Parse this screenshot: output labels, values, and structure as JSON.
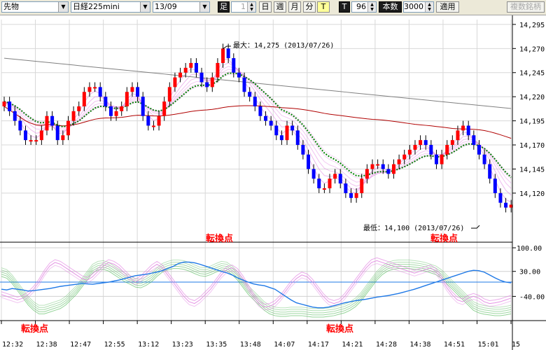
{
  "toolbar": {
    "market": "先物",
    "symbol": "日経225mini",
    "contract": "13/09",
    "period_label": "足",
    "minutes_value": "1",
    "day": "日",
    "week": "週",
    "month": "月",
    "minute": "分",
    "tick": "T",
    "t_label": "T",
    "count1": "96",
    "count_label": "本数",
    "count2": "3000",
    "apply": "適用",
    "compare": "複数銘柄"
  },
  "annotations": {
    "max_label": "最大：14,275 (2013/07/26)",
    "min_label": "最低：14,100 (2013/07/26)",
    "turn": "転換点"
  },
  "colors": {
    "up": "#ff0000",
    "down": "#0000ff",
    "ma_dotted": "#008000",
    "ma_red": "#b00000",
    "ma_gray": "#808080",
    "ribbon": "#e080e0",
    "osc_blue": "#1e78e6"
  },
  "chart_data": {
    "type": "candlestick",
    "x_ticks": [
      "12:32",
      "12:38",
      "12:47",
      "12:55",
      "13:12",
      "13:23",
      "13:35",
      "13:48",
      "14:07",
      "14:17",
      "14:21",
      "14:28",
      "14:38",
      "14:51",
      "15:01",
      "15"
    ],
    "y_ticks": [
      14295,
      14270,
      14245,
      14220,
      14195,
      14170,
      14145,
      14120
    ],
    "ylim": [
      14072,
      14300
    ],
    "max": {
      "value": 14275,
      "date": "2013/07/26",
      "time": "13:35"
    },
    "min": {
      "value": 14100,
      "date": "2013/07/26",
      "time": "15:01"
    },
    "close": [
      14215,
      14205,
      14195,
      14185,
      14175,
      14175,
      14175,
      14185,
      14200,
      14190,
      14175,
      14180,
      14195,
      14205,
      14210,
      14225,
      14230,
      14230,
      14220,
      14210,
      14200,
      14205,
      14210,
      14225,
      14230,
      14220,
      14200,
      14190,
      14190,
      14200,
      14215,
      14230,
      14240,
      14245,
      14250,
      14255,
      14245,
      14235,
      14230,
      14240,
      14255,
      14270,
      14260,
      14245,
      14240,
      14225,
      14220,
      14210,
      14200,
      14195,
      14190,
      14180,
      14175,
      14190,
      14185,
      14170,
      14160,
      14145,
      14135,
      14125,
      14125,
      14135,
      14140,
      14130,
      14120,
      14115,
      14120,
      14135,
      14145,
      14150,
      14150,
      14145,
      14140,
      14150,
      14155,
      14160,
      14165,
      14170,
      14175,
      14170,
      14160,
      14150,
      14160,
      14170,
      14175,
      14185,
      14190,
      14180,
      14170,
      14160,
      14150,
      14135,
      14120,
      14110,
      14105,
      14108
    ],
    "oscillator": {
      "levels": [
        100,
        30,
        -40
      ],
      "blue": [
        -20,
        -22,
        -18,
        -20,
        -22,
        -25,
        -24,
        -22,
        -20,
        -18,
        -15,
        -12,
        -10,
        -8,
        -6,
        -4,
        -5,
        -6,
        -4,
        -2,
        0,
        3,
        6,
        10,
        14,
        18,
        20,
        22,
        25,
        28,
        32,
        38,
        44,
        52,
        56,
        56,
        54,
        50,
        45,
        40,
        35,
        30,
        26,
        20,
        12,
        6,
        0,
        -5,
        -8,
        -10,
        -15,
        -20,
        -30,
        -40,
        -50,
        -58,
        -62,
        -66,
        -70,
        -72,
        -72,
        -70,
        -66,
        -62,
        -58,
        -55,
        -52,
        -50,
        -48,
        -45,
        -42,
        -40,
        -38,
        -35,
        -32,
        -28,
        -24,
        -20,
        -15,
        -10,
        -5,
        0,
        5,
        10,
        15,
        20,
        25,
        30,
        33,
        32,
        28,
        20,
        12,
        5,
        0,
        -2
      ],
      "green": [
        40,
        35,
        20,
        0,
        -20,
        -40,
        -55,
        -65,
        -65,
        -60,
        -55,
        -50,
        -40,
        -25,
        -10,
        10,
        30,
        50,
        58,
        60,
        55,
        45,
        35,
        25,
        18,
        10,
        8,
        15,
        25,
        40,
        52,
        58,
        62,
        62,
        60,
        55,
        48,
        42,
        40,
        45,
        52,
        58,
        56,
        45,
        30,
        10,
        -10,
        -25,
        -40,
        -55,
        -65,
        -70,
        -72,
        -72,
        -70,
        -70,
        -70,
        -72,
        -74,
        -74,
        -74,
        -72,
        -70,
        -66,
        -62,
        -55,
        -45,
        -30,
        -10,
        10,
        30,
        45,
        55,
        60,
        62,
        62,
        62,
        60,
        58,
        55,
        50,
        45,
        35,
        20,
        5,
        -10,
        -25,
        -40,
        -55,
        -62,
        -66,
        -68,
        -70,
        -70,
        -68,
        -65
      ],
      "pink": [
        -35,
        -40,
        -45,
        -50,
        -45,
        -35,
        -20,
        0,
        25,
        45,
        55,
        50,
        40,
        30,
        20,
        10,
        5,
        15,
        30,
        45,
        55,
        50,
        40,
        25,
        10,
        0,
        10,
        25,
        40,
        50,
        40,
        20,
        0,
        -20,
        -40,
        -55,
        -60,
        -50,
        -35,
        -20,
        0,
        20,
        35,
        40,
        30,
        10,
        -15,
        -40,
        -60,
        -70,
        -68,
        -60,
        -45,
        -25,
        -5,
        10,
        20,
        15,
        0,
        -20,
        -40,
        -55,
        -60,
        -55,
        -40,
        -20,
        0,
        20,
        40,
        55,
        60,
        55,
        50,
        45,
        40,
        35,
        30,
        25,
        30,
        35,
        40,
        30,
        10,
        -15,
        -35,
        -50,
        -55,
        -45,
        -40,
        -45,
        -55,
        -60,
        -58,
        -55,
        -50,
        -45
      ]
    }
  }
}
